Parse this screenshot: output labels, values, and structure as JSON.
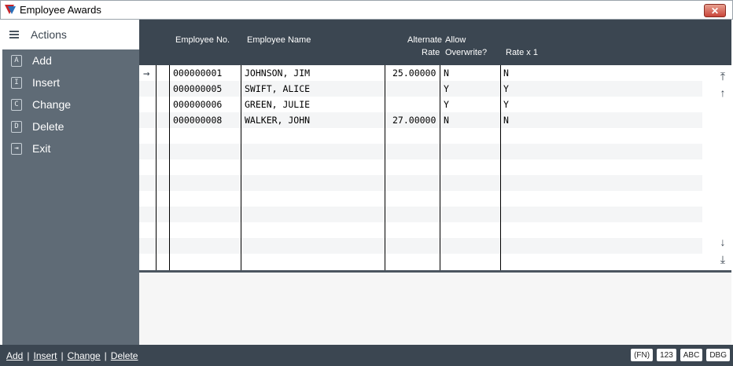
{
  "window": {
    "title": "Employee Awards",
    "close_label": "✕"
  },
  "sidebar": {
    "header": "Actions",
    "items": [
      {
        "key": "A",
        "label": "Add"
      },
      {
        "key": "I",
        "label": "Insert"
      },
      {
        "key": "C",
        "label": "Change"
      },
      {
        "key": "D",
        "label": "Delete"
      },
      {
        "key": "⇥",
        "label": "Exit"
      }
    ]
  },
  "grid": {
    "columns": {
      "employee_no": "Employee No.",
      "employee_name": "Employee Name",
      "alt_rate_1": "Alternate",
      "alt_rate_2": "Rate",
      "allow_1": "Allow",
      "allow_2": "Overwrite?",
      "rate_x1": "Rate x 1"
    },
    "rows": [
      {
        "no": "000000001",
        "name": "JOHNSON, JIM",
        "rate": "25.00000",
        "allow": "N",
        "ratex1": "N"
      },
      {
        "no": "000000005",
        "name": "SWIFT, ALICE",
        "rate": "",
        "allow": "Y",
        "ratex1": "Y"
      },
      {
        "no": "000000006",
        "name": "GREEN, JULIE",
        "rate": "",
        "allow": "Y",
        "ratex1": "Y"
      },
      {
        "no": "000000008",
        "name": "WALKER, JOHN",
        "rate": "27.00000",
        "allow": "N",
        "ratex1": "N"
      }
    ],
    "current_row_icon": "right-arrow-icon"
  },
  "footer": {
    "links": [
      "Add",
      "Insert",
      "Change",
      "Delete"
    ],
    "badges": [
      "(FN)",
      "123",
      "ABC",
      "DBG"
    ]
  }
}
